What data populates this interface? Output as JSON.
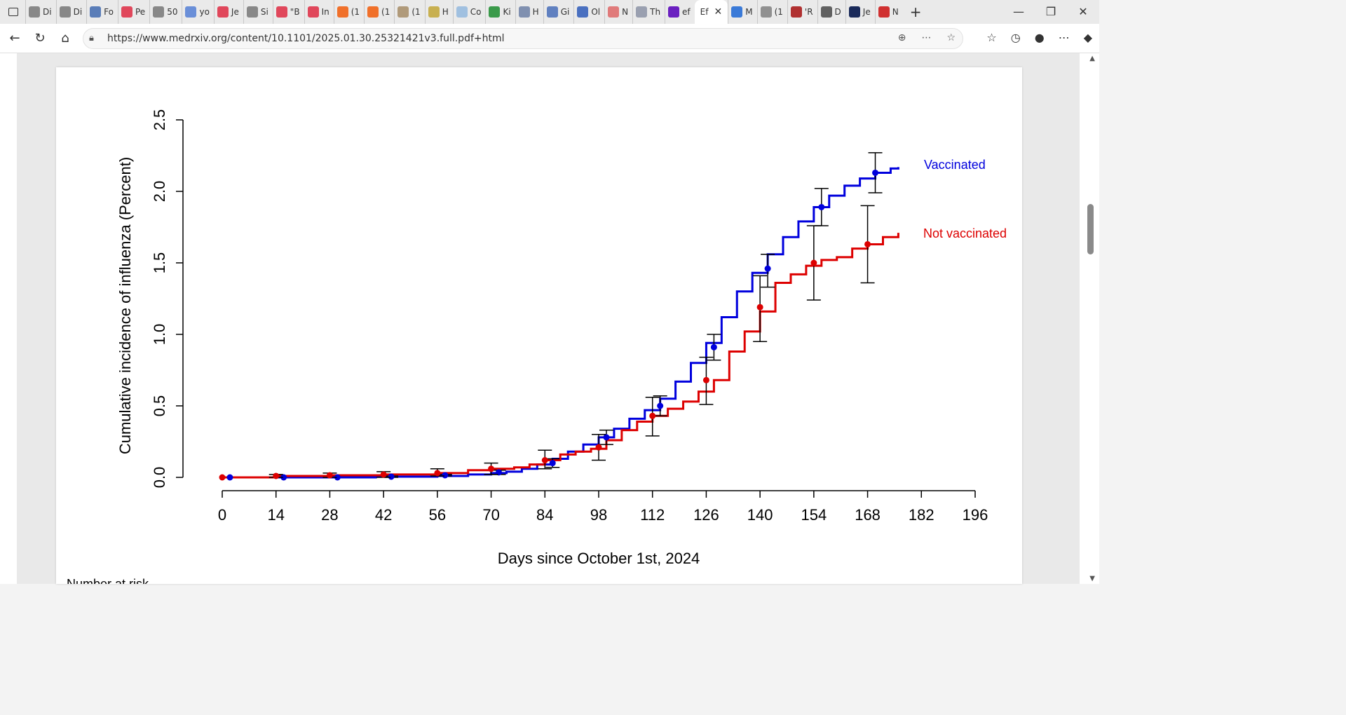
{
  "browser": {
    "tabs": [
      {
        "label": "Di",
        "color": "#888"
      },
      {
        "label": "Di",
        "color": "#888"
      },
      {
        "label": "Fo",
        "color": "#5a7db8"
      },
      {
        "label": "Pe",
        "color": "#e0475b"
      },
      {
        "label": "50",
        "color": "#888"
      },
      {
        "label": "yo",
        "color": "#6a8fd8"
      },
      {
        "label": "Je",
        "color": "#e0475b"
      },
      {
        "label": "Si",
        "color": "#888"
      },
      {
        "label": "\"B",
        "color": "#e0475b"
      },
      {
        "label": "In",
        "color": "#e0475b"
      },
      {
        "label": "(1",
        "color": "#f0702a"
      },
      {
        "label": "(1",
        "color": "#f0702a"
      },
      {
        "label": "(1",
        "color": "#b09a7a"
      },
      {
        "label": "H",
        "color": "#c8b050"
      },
      {
        "label": "Co",
        "color": "#a0c0e0"
      },
      {
        "label": "Ki",
        "color": "#3a9a4a"
      },
      {
        "label": "H",
        "color": "#8090b0"
      },
      {
        "label": "Gi",
        "color": "#6080c0"
      },
      {
        "label": "Ol",
        "color": "#4a70c0"
      },
      {
        "label": "N",
        "color": "#e07a7a"
      },
      {
        "label": "Th",
        "color": "#9aa0b0"
      },
      {
        "label": "ef",
        "color": "#6a20c0"
      }
    ],
    "active_tab": {
      "label": "Ef",
      "close": "✕"
    },
    "tabs_after": [
      {
        "label": "M",
        "color": "#3a7ad8"
      },
      {
        "label": "(1",
        "color": "#909090"
      },
      {
        "label": "'R",
        "color": "#b03030"
      },
      {
        "label": "D",
        "color": "#606060"
      },
      {
        "label": "Je",
        "color": "#1a2a5a"
      },
      {
        "label": "N",
        "color": "#d03030"
      }
    ],
    "new_tab": "+",
    "window_controls": {
      "minimize": "—",
      "restore": "❐",
      "close": "✕"
    },
    "url": "https://www.medrxiv.org/content/10.1101/2025.01.30.25321421v3.full.pdf+html"
  },
  "chart_data": {
    "type": "line",
    "xlabel": "Days since October 1st, 2024",
    "ylabel": "Cumulative incidence of influenza (Percent)",
    "xlim": [
      0,
      196
    ],
    "ylim": [
      0,
      2.5
    ],
    "xticks": [
      0,
      14,
      28,
      42,
      56,
      70,
      84,
      98,
      112,
      126,
      140,
      154,
      168,
      182,
      196
    ],
    "yticks": [
      "0.0",
      "0.5",
      "1.0",
      "1.5",
      "2.0",
      "2.5"
    ],
    "series": [
      {
        "name": "Vaccinated",
        "color": "#0000dd",
        "curve_x": [
          0,
          20,
          40,
          56,
          64,
          70,
          74,
          78,
          82,
          86,
          90,
          94,
          98,
          102,
          106,
          110,
          114,
          118,
          122,
          126,
          130,
          134,
          138,
          142,
          146,
          150,
          154,
          158,
          162,
          166,
          170,
          174,
          176
        ],
        "curve_y": [
          0.0,
          0.0,
          0.005,
          0.01,
          0.02,
          0.03,
          0.04,
          0.06,
          0.09,
          0.13,
          0.18,
          0.23,
          0.28,
          0.34,
          0.41,
          0.47,
          0.55,
          0.67,
          0.8,
          0.94,
          1.12,
          1.3,
          1.43,
          1.56,
          1.68,
          1.79,
          1.89,
          1.97,
          2.04,
          2.09,
          2.13,
          2.16,
          2.17
        ],
        "points_x": [
          2,
          16,
          30,
          44,
          58,
          72,
          86,
          100,
          114,
          128,
          142,
          156,
          170
        ],
        "points_y": [
          0.0,
          0.0,
          0.0,
          0.005,
          0.015,
          0.035,
          0.1,
          0.28,
          0.5,
          0.91,
          1.46,
          1.89,
          2.13
        ],
        "err_lo": [
          0.0,
          0.0,
          0.0,
          0.0,
          0.01,
          0.02,
          0.07,
          0.23,
          0.43,
          0.82,
          1.33,
          1.76,
          1.99
        ],
        "err_hi": [
          0.0,
          0.0,
          0.0,
          0.01,
          0.02,
          0.05,
          0.13,
          0.33,
          0.57,
          1.0,
          1.56,
          2.02,
          2.27
        ]
      },
      {
        "name": "Not vaccinated",
        "color": "#dd0000",
        "curve_x": [
          0,
          14,
          28,
          42,
          56,
          64,
          70,
          76,
          80,
          84,
          88,
          92,
          96,
          100,
          104,
          108,
          112,
          116,
          120,
          124,
          128,
          132,
          136,
          140,
          144,
          148,
          152,
          156,
          160,
          164,
          168,
          172,
          176
        ],
        "curve_y": [
          0.0,
          0.01,
          0.015,
          0.02,
          0.03,
          0.05,
          0.06,
          0.07,
          0.09,
          0.12,
          0.16,
          0.18,
          0.2,
          0.26,
          0.33,
          0.39,
          0.43,
          0.48,
          0.53,
          0.6,
          0.68,
          0.88,
          1.02,
          1.16,
          1.36,
          1.42,
          1.48,
          1.52,
          1.54,
          1.6,
          1.63,
          1.68,
          1.71
        ],
        "points_x": [
          0,
          14,
          28,
          42,
          56,
          70,
          84,
          98,
          112,
          126,
          140,
          154,
          168
        ],
        "points_y": [
          0.0,
          0.01,
          0.015,
          0.02,
          0.03,
          0.06,
          0.12,
          0.21,
          0.43,
          0.68,
          1.19,
          1.5,
          1.63
        ],
        "err_lo": [
          0.0,
          0.0,
          0.0,
          0.0,
          0.01,
          0.02,
          0.06,
          0.12,
          0.29,
          0.51,
          0.95,
          1.24,
          1.36
        ],
        "err_hi": [
          0.0,
          0.02,
          0.03,
          0.04,
          0.06,
          0.1,
          0.19,
          0.3,
          0.56,
          0.84,
          1.41,
          1.76,
          1.9
        ]
      }
    ],
    "legend": [
      {
        "label": "Vaccinated",
        "color": "#0000dd"
      },
      {
        "label": "Not vaccinated",
        "color": "#dd0000"
      }
    ]
  },
  "below_chart_partial": "Number at risk"
}
